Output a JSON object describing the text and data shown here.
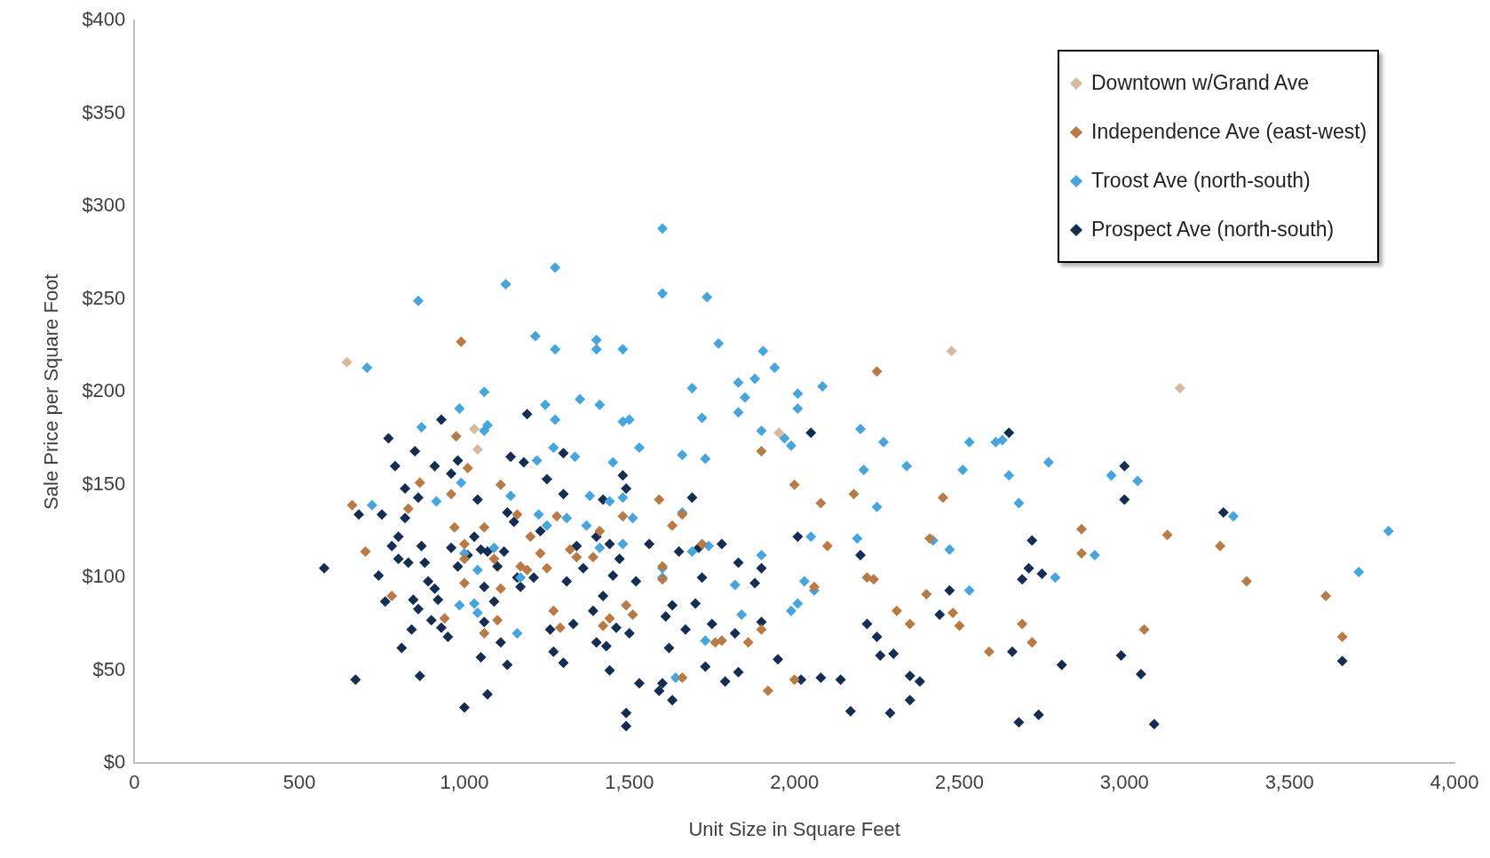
{
  "chart_data": {
    "type": "scatter",
    "xlabel": "Unit Size in Square Feet",
    "ylabel": "Sale Price per Square Foot",
    "xlim": [
      0,
      4000
    ],
    "ylim": [
      0,
      400
    ],
    "xticks": [
      0,
      500,
      {
        "value": 1000,
        "label": "1,000"
      },
      {
        "value": 1500,
        "label": "1,500"
      },
      {
        "value": 2000,
        "label": "2,000"
      },
      {
        "value": 2500,
        "label": "2,500"
      },
      {
        "value": 3000,
        "label": "3,000"
      },
      {
        "value": 3500,
        "label": "3,500"
      },
      {
        "value": 4000,
        "label": "4,000"
      }
    ],
    "yticks": [
      {
        "value": 0,
        "label": "$0"
      },
      {
        "value": 50,
        "label": "$50"
      },
      {
        "value": 100,
        "label": "$100"
      },
      {
        "value": 150,
        "label": "$150"
      },
      {
        "value": 200,
        "label": "$200"
      },
      {
        "value": 250,
        "label": "$250"
      },
      {
        "value": 300,
        "label": "$300"
      },
      {
        "value": 350,
        "label": "$350"
      },
      {
        "value": 400,
        "label": "$400"
      }
    ],
    "grid": false,
    "legend": "top right",
    "marker": "diamond",
    "series": [
      {
        "name": "Downtown w/Grand Ave",
        "color": "#d9b99b",
        "x": [
          644,
          2476,
          3168,
          1030,
          1040,
          1953
        ],
        "values": [
          216,
          222,
          202,
          180,
          169,
          178
        ]
      },
      {
        "name": "Independence Ave (east-west)",
        "color": "#b97a45",
        "x": [
          990,
          2250,
          975,
          1900,
          2000,
          1010,
          1110,
          865,
          830,
          660,
          1060,
          1160,
          1200,
          1190,
          1280,
          1320,
          1340,
          1390,
          1410,
          1480,
          1590,
          1600,
          1630,
          1660,
          1720,
          2080,
          2180,
          2450,
          2100,
          1760,
          1780,
          1900,
          1920,
          2000,
          1860,
          2220,
          2240,
          2060,
          2310,
          2350,
          2400,
          2410,
          2480,
          2500,
          2590,
          2690,
          2720,
          2870,
          2870,
          3060,
          3130,
          3290,
          3370,
          3610,
          3660,
          700,
          780,
          960,
          970,
          1000,
          1000,
          940,
          1060,
          1100,
          1110,
          1270,
          1290,
          1420,
          1440,
          1490,
          1510,
          1600,
          1660,
          1230,
          1250,
          1000,
          1170,
          1090
        ],
        "values": [
          227,
          211,
          176,
          168,
          150,
          159,
          150,
          151,
          137,
          139,
          127,
          134,
          122,
          104,
          133,
          115,
          111,
          111,
          125,
          133,
          142,
          106,
          128,
          134,
          118,
          140,
          145,
          143,
          117,
          65,
          66,
          72,
          39,
          45,
          65,
          100,
          99,
          95,
          82,
          75,
          91,
          121,
          81,
          74,
          60,
          75,
          65,
          126,
          113,
          72,
          123,
          117,
          98,
          90,
          68,
          114,
          90,
          145,
          127,
          97,
          110,
          78,
          70,
          77,
          94,
          82,
          73,
          74,
          78,
          85,
          80,
          99,
          46,
          113,
          105,
          118,
          106,
          110
        ]
      },
      {
        "name": "Troost Ave (north-south)",
        "color": "#45a5dc",
        "x": [
          1600,
          1125,
          1275,
          1600,
          1735,
          860,
          1215,
          1400,
          1275,
          1400,
          1480,
          1770,
          1905,
          1940,
          705,
          1880,
          1690,
          1830,
          2085,
          2010,
          1850,
          1060,
          1350,
          1410,
          1245,
          985,
          2010,
          1830,
          1480,
          1500,
          1720,
          1275,
          1070,
          870,
          1060,
          2200,
          1900,
          1970,
          1990,
          2270,
          2530,
          2610,
          2630,
          1530,
          1270,
          1660,
          1730,
          1335,
          1220,
          1450,
          2770,
          2510,
          2210,
          2340,
          2650,
          2960,
          3040,
          990,
          915,
          1140,
          1380,
          1440,
          1480,
          2680,
          2250,
          3330,
          720,
          1510,
          1660,
          1310,
          1225,
          1250,
          1370,
          1480,
          2190,
          2420,
          2050,
          3800,
          1740,
          1690,
          1090,
          1000,
          1410,
          1040,
          1900,
          2470,
          2910,
          2790,
          3710,
          2030,
          1820,
          2060,
          2530,
          985,
          1030,
          1040,
          2010,
          1990,
          1160,
          1730,
          1640,
          1840,
          1600,
          1170,
          1600
        ],
        "values": [
          288,
          258,
          267,
          253,
          251,
          249,
          230,
          228,
          223,
          223,
          223,
          226,
          222,
          213,
          213,
          207,
          202,
          205,
          203,
          199,
          197,
          200,
          196,
          193,
          193,
          191,
          191,
          189,
          184,
          185,
          186,
          185,
          182,
          181,
          179,
          180,
          179,
          175,
          171,
          173,
          173,
          173,
          174,
          170,
          170,
          166,
          164,
          165,
          163,
          162,
          162,
          158,
          158,
          160,
          155,
          155,
          152,
          151,
          141,
          144,
          144,
          141,
          143,
          140,
          138,
          133,
          139,
          132,
          135,
          132,
          134,
          128,
          128,
          118,
          121,
          120,
          122,
          125,
          117,
          114,
          116,
          113,
          116,
          104,
          112,
          115,
          112,
          100,
          103,
          98,
          96,
          93,
          93,
          85,
          86,
          81,
          86,
          82,
          70,
          66,
          46,
          80,
          100,
          100,
          105
        ]
      },
      {
        "name": "Prospect Ave (north-south)",
        "color": "#142d52",
        "x": [
          575,
          670,
          680,
          740,
          750,
          760,
          770,
          780,
          790,
          800,
          800,
          810,
          820,
          820,
          830,
          840,
          845,
          850,
          860,
          860,
          865,
          870,
          880,
          890,
          900,
          910,
          910,
          920,
          930,
          930,
          950,
          960,
          960,
          980,
          980,
          1000,
          1010,
          1030,
          1040,
          1050,
          1050,
          1060,
          1060,
          1070,
          1070,
          1090,
          1100,
          1110,
          1120,
          1130,
          1130,
          1140,
          1150,
          1160,
          1170,
          1180,
          1190,
          1210,
          1230,
          1250,
          1260,
          1270,
          1300,
          1300,
          1300,
          1310,
          1330,
          1340,
          1360,
          1390,
          1400,
          1400,
          1420,
          1420,
          1430,
          1440,
          1440,
          1450,
          1460,
          1470,
          1480,
          1490,
          1490,
          1490,
          1500,
          1520,
          1530,
          1560,
          1590,
          1600,
          1610,
          1620,
          1630,
          1630,
          1650,
          1670,
          1690,
          1700,
          1710,
          1720,
          1730,
          1750,
          1780,
          1790,
          1820,
          1830,
          1830,
          1880,
          1900,
          1900,
          1950,
          2010,
          2020,
          2050,
          2080,
          2140,
          2170,
          2200,
          2220,
          2250,
          2260,
          2290,
          2300,
          2350,
          2350,
          2380,
          2440,
          2470,
          2650,
          2660,
          2680,
          2690,
          2710,
          2720,
          2740,
          2750,
          2810,
          2990,
          3000,
          3000,
          3050,
          3090,
          3300,
          3660
        ],
        "values": [
          105,
          45,
          134,
          101,
          134,
          87,
          175,
          117,
          160,
          110,
          122,
          62,
          132,
          148,
          108,
          72,
          88,
          168,
          83,
          143,
          47,
          117,
          108,
          98,
          77,
          94,
          160,
          88,
          185,
          73,
          68,
          116,
          156,
          163,
          106,
          30,
          112,
          122,
          142,
          57,
          115,
          76,
          95,
          37,
          114,
          87,
          106,
          65,
          114,
          53,
          135,
          165,
          130,
          100,
          95,
          162,
          188,
          100,
          125,
          153,
          72,
          60,
          167,
          145,
          54,
          98,
          75,
          117,
          105,
          82,
          65,
          122,
          142,
          90,
          63,
          50,
          118,
          101,
          73,
          110,
          155,
          148,
          27,
          20,
          70,
          98,
          43,
          118,
          39,
          43,
          79,
          62,
          34,
          85,
          114,
          72,
          143,
          86,
          116,
          100,
          52,
          75,
          118,
          44,
          70,
          108,
          49,
          97,
          76,
          105,
          56,
          122,
          45,
          178,
          46,
          45,
          28,
          112,
          75,
          68,
          58,
          27,
          59,
          34,
          47,
          44,
          80,
          93,
          178,
          60,
          22,
          99,
          105,
          120,
          26,
          102,
          53,
          58,
          160,
          142,
          48,
          21,
          135,
          55
        ]
      }
    ]
  }
}
